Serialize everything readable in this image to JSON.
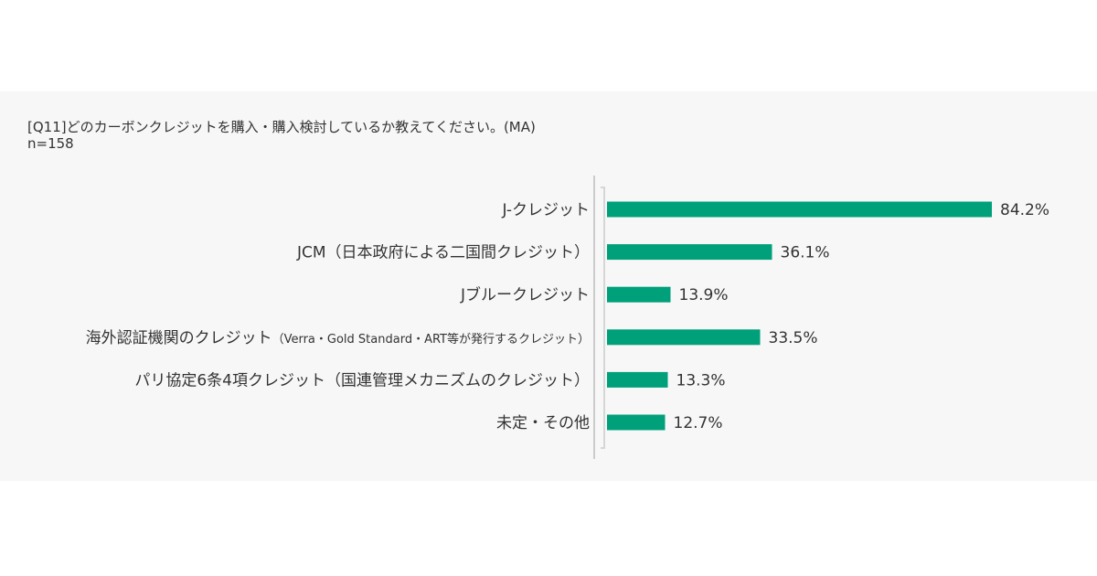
{
  "header": {
    "question": "[Q11]どのカーボンクレジットを購入・購入検討しているか教えてください。(MA)",
    "sample_size": "n=158"
  },
  "colors": {
    "bar": "#00a07a",
    "panel_background": "#f7f7f7",
    "axis": "#cccccc"
  },
  "chart_data": {
    "type": "bar",
    "orientation": "horizontal",
    "title": "[Q11]どのカーボンクレジットを購入・購入検討しているか教えてください。(MA)",
    "subtitle": "n=158",
    "categories": [
      {
        "label": "J-クレジット",
        "note": ""
      },
      {
        "label": "JCM（日本政府による二国間クレジット）",
        "note": ""
      },
      {
        "label": "Jブルークレジット",
        "note": ""
      },
      {
        "label": "海外認証機関のクレジット",
        "note": "（Verra・Gold Standard・ART等が発行するクレジット）"
      },
      {
        "label": "パリ協定6条4項クレジット（国連管理メカニズムのクレジット）",
        "note": ""
      },
      {
        "label": "未定・その他",
        "note": ""
      }
    ],
    "values": [
      84.2,
      36.1,
      13.9,
      33.5,
      13.3,
      12.7
    ],
    "value_labels": [
      "84.2%",
      "36.1%",
      "13.9%",
      "33.5%",
      "13.3%",
      "12.7%"
    ],
    "unit": "%",
    "xlim": [
      0,
      100
    ],
    "grid": false,
    "legend": "none"
  }
}
